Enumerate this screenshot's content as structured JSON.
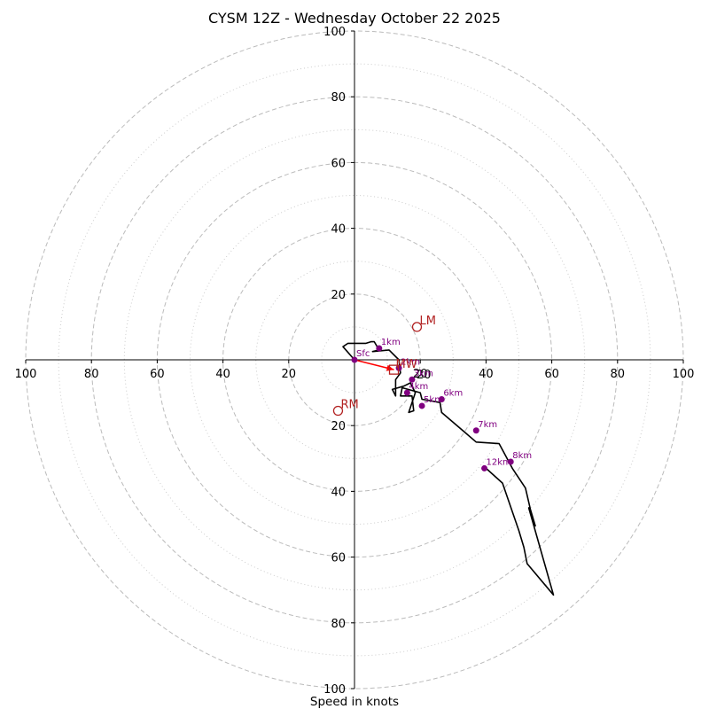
{
  "chart_data": {
    "type": "hodograph",
    "title": "CYSM 12Z - Wednesday October 22 2025",
    "xlabel": "Speed in knots",
    "units": "knots",
    "xlim": [
      -100,
      100
    ],
    "ylim": [
      -100,
      100
    ],
    "ring_major": [
      20,
      40,
      60,
      80,
      100
    ],
    "ring_minor": [
      10,
      30,
      50,
      70,
      90
    ],
    "ring_label": "20",
    "x_ticks": [
      -100,
      -80,
      -60,
      -40,
      -20,
      20,
      40,
      60,
      80,
      100
    ],
    "x_tick_labels": [
      "100",
      "80",
      "60",
      "40",
      "20",
      "20",
      "40",
      "60",
      "80",
      "100"
    ],
    "y_ticks": [
      100,
      80,
      60,
      40,
      20,
      -20,
      -40,
      -60,
      -80,
      -100
    ],
    "y_tick_labels": [
      "100",
      "80",
      "60",
      "40",
      "20",
      "20",
      "40",
      "60",
      "80",
      "100"
    ],
    "trace": {
      "u": [
        0,
        -3.5,
        -2,
        3.5,
        5,
        6,
        7.5,
        5.5,
        10.5,
        13.5,
        14,
        12.5,
        12.5,
        11.5,
        15,
        17,
        18.5,
        16.5,
        18,
        17.5,
        14,
        14.5,
        20,
        20.5,
        26,
        26.5,
        30,
        33.5,
        37,
        44,
        48,
        52,
        53.5,
        55,
        53,
        60.5,
        52.5,
        51.5,
        50,
        45,
        40
      ],
      "v": [
        0,
        4,
        5,
        5,
        5.5,
        5.5,
        3,
        2.5,
        3,
        0,
        -4,
        -6,
        -11,
        -9,
        -8,
        -7,
        -10,
        -16,
        -15.5,
        -11,
        -11,
        -8.5,
        -10,
        -12,
        -13,
        -16,
        -19,
        -22,
        -25,
        -25.5,
        -33,
        -39,
        -45.5,
        -50.5,
        -45,
        -71.5,
        -62,
        -57,
        -52,
        -37.5,
        -33
      ]
    },
    "height_markers": [
      {
        "label": "Sfc",
        "u": 0,
        "v": 0
      },
      {
        "label": "1km",
        "u": 7.5,
        "v": 3.5
      },
      {
        "label": "2km",
        "u": 13.5,
        "v": -2.5
      },
      {
        "label": "3km",
        "u": 17.5,
        "v": -6
      },
      {
        "label": "4km",
        "u": 16,
        "v": -10
      },
      {
        "label": "5km",
        "u": 20.5,
        "v": -14
      },
      {
        "label": "6km",
        "u": 26.5,
        "v": -12
      },
      {
        "label": "7km",
        "u": 37,
        "v": -21.5
      },
      {
        "label": "8km",
        "u": 47.5,
        "v": -31
      },
      {
        "label": "12km",
        "u": 39.5,
        "v": -33
      }
    ],
    "storm_motion": [
      {
        "label": "LM",
        "u": 19,
        "v": 10,
        "shape": "circle"
      },
      {
        "label": "RM",
        "u": -5,
        "v": -15.5,
        "shape": "circle"
      },
      {
        "label": "MW",
        "u": 12,
        "v": -3,
        "shape": "square"
      }
    ],
    "shear_vector": {
      "from_u": 0,
      "from_v": 0,
      "to_u": 12,
      "to_v": -3
    },
    "colors": {
      "trace": "#000000",
      "markers": "#800080",
      "storm": "#b22222",
      "arrow": "#ff0000",
      "grid": "#bbbbbb"
    }
  }
}
